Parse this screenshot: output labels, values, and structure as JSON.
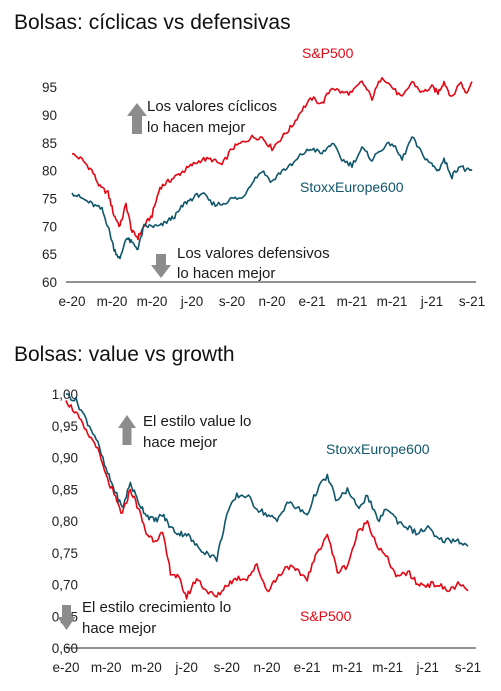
{
  "chart_data": [
    {
      "type": "line",
      "title": "Bolsas: cíclicas vs defensivas",
      "x_ticks": [
        "e-20",
        "m-20",
        "m-20",
        "j-20",
        "s-20",
        "n-20",
        "e-21",
        "m-21",
        "m-21",
        "j-21",
        "s-21"
      ],
      "y_ticks": [
        "60",
        "65",
        "70",
        "75",
        "80",
        "85",
        "90",
        "95"
      ],
      "ylim": [
        60,
        97
      ],
      "x_range": [
        0,
        20
      ],
      "grid": false,
      "series": [
        {
          "name": "S&P500",
          "color": "#e30613",
          "x": [
            0,
            0.5,
            1,
            1.4,
            1.8,
            2.1,
            2.4,
            2.7,
            3,
            3.3,
            3.6,
            4,
            4.4,
            4.8,
            5.2,
            5.6,
            6,
            6.5,
            7,
            7.5,
            8,
            8.5,
            9,
            9.5,
            10,
            10.5,
            11,
            11.5,
            12,
            12.5,
            13,
            13.5,
            14,
            14.5,
            15,
            15.5,
            16,
            16.5,
            17,
            17.5,
            18,
            18.3,
            18.6,
            19,
            19.4,
            19.7,
            20
          ],
          "y": [
            83,
            82,
            80,
            77,
            76,
            72,
            70,
            74,
            69,
            68,
            70,
            72,
            77,
            78,
            79,
            80,
            81,
            82,
            82,
            81,
            84,
            85,
            86,
            86,
            84,
            86,
            88,
            91,
            93,
            92,
            95,
            94,
            94,
            96,
            93,
            97,
            95,
            93,
            96,
            94,
            95,
            94,
            96,
            93,
            96,
            94,
            96
          ]
        },
        {
          "name": "StoxxEurope600",
          "color": "#10566b",
          "x": [
            0,
            0.5,
            1,
            1.5,
            1.8,
            2.1,
            2.4,
            2.7,
            3,
            3.3,
            3.6,
            4,
            4.4,
            4.8,
            5.2,
            5.6,
            6,
            6.5,
            7,
            7.5,
            8,
            8.5,
            9,
            9.5,
            10,
            10.5,
            11,
            11.5,
            12,
            12.5,
            13,
            13.5,
            14,
            14.5,
            15,
            15.5,
            16,
            16.5,
            17,
            17.5,
            18,
            18.3,
            18.6,
            19,
            19.4,
            19.7,
            20
          ],
          "y": [
            76,
            75,
            74,
            73,
            70,
            66,
            64,
            68,
            67,
            66,
            70,
            70,
            70,
            71,
            72,
            74,
            75,
            76,
            74,
            74,
            75,
            75,
            78,
            80,
            78,
            80,
            81,
            83,
            84,
            83,
            85,
            82,
            81,
            84,
            82,
            84,
            85,
            82,
            86,
            83,
            81,
            80,
            82,
            79,
            81,
            80,
            80
          ]
        }
      ],
      "annotations": [
        {
          "text": "S&P500",
          "color": "#e30613"
        },
        {
          "text": "StoxxEurope600",
          "color": "#10566b"
        },
        {
          "text": [
            "Los valores cíclicos",
            "lo hacen mejor"
          ],
          "arrow": "up"
        },
        {
          "text": [
            "Los valores defensivos",
            "lo hacen mejor"
          ],
          "arrow": "down"
        }
      ]
    },
    {
      "type": "line",
      "title": "Bolsas: value vs growth",
      "x_ticks": [
        "e-20",
        "m-20",
        "m-20",
        "j-20",
        "s-20",
        "n-20",
        "e-21",
        "m-21",
        "m-21",
        "j-21",
        "s-21"
      ],
      "y_ticks": [
        "1,00",
        "0,95",
        "0,90",
        "0,85",
        "0,80",
        "0,75",
        "0,70",
        "0,65",
        "0,60"
      ],
      "ylim": [
        0.6,
        1.0
      ],
      "x_range": [
        0,
        20
      ],
      "grid": false,
      "series": [
        {
          "name": "StoxxEurope600",
          "color": "#10566b",
          "x": [
            0,
            0.5,
            1,
            1.5,
            2,
            2.4,
            2.8,
            3.2,
            3.6,
            4,
            4.4,
            4.8,
            5.2,
            5.6,
            6,
            6.5,
            7,
            7.5,
            8,
            8.5,
            9,
            9.5,
            10,
            10.5,
            11,
            11.5,
            12,
            12.5,
            13,
            13.5,
            14,
            14.5,
            15,
            15.5,
            16,
            16.5,
            17,
            17.5,
            18,
            18.5,
            19,
            19.5,
            20
          ],
          "y": [
            1.0,
            0.99,
            0.96,
            0.93,
            0.88,
            0.85,
            0.82,
            0.86,
            0.83,
            0.81,
            0.8,
            0.81,
            0.79,
            0.78,
            0.78,
            0.76,
            0.75,
            0.74,
            0.81,
            0.84,
            0.84,
            0.82,
            0.81,
            0.8,
            0.83,
            0.82,
            0.81,
            0.85,
            0.87,
            0.83,
            0.85,
            0.82,
            0.84,
            0.8,
            0.82,
            0.8,
            0.79,
            0.78,
            0.79,
            0.77,
            0.77,
            0.77,
            0.76
          ]
        },
        {
          "name": "S&P500",
          "color": "#e30613",
          "x": [
            0,
            0.5,
            1,
            1.5,
            2,
            2.4,
            2.8,
            3.2,
            3.6,
            4,
            4.4,
            4.8,
            5.2,
            5.6,
            6,
            6.5,
            7,
            7.5,
            8,
            8.5,
            9,
            9.5,
            10,
            10.5,
            11,
            11.5,
            12,
            12.5,
            13,
            13.5,
            14,
            14.5,
            15,
            15.5,
            16,
            16.5,
            17,
            17.5,
            18,
            18.5,
            19,
            19.5,
            20
          ],
          "y": [
            0.99,
            0.97,
            0.94,
            0.92,
            0.87,
            0.84,
            0.81,
            0.85,
            0.82,
            0.78,
            0.77,
            0.78,
            0.72,
            0.71,
            0.68,
            0.71,
            0.69,
            0.68,
            0.7,
            0.71,
            0.71,
            0.73,
            0.69,
            0.71,
            0.73,
            0.72,
            0.71,
            0.75,
            0.78,
            0.72,
            0.73,
            0.78,
            0.8,
            0.76,
            0.74,
            0.71,
            0.72,
            0.7,
            0.7,
            0.7,
            0.69,
            0.7,
            0.69
          ]
        }
      ],
      "annotations": [
        {
          "text": "StoxxEurope600",
          "color": "#10566b"
        },
        {
          "text": "S&P500",
          "color": "#e30613"
        },
        {
          "text": [
            "El estilo value lo",
            "hace mejor"
          ],
          "arrow": "up"
        },
        {
          "text": [
            "El estilo crecimiento lo",
            "hace mejor"
          ],
          "arrow": "down"
        }
      ]
    }
  ]
}
